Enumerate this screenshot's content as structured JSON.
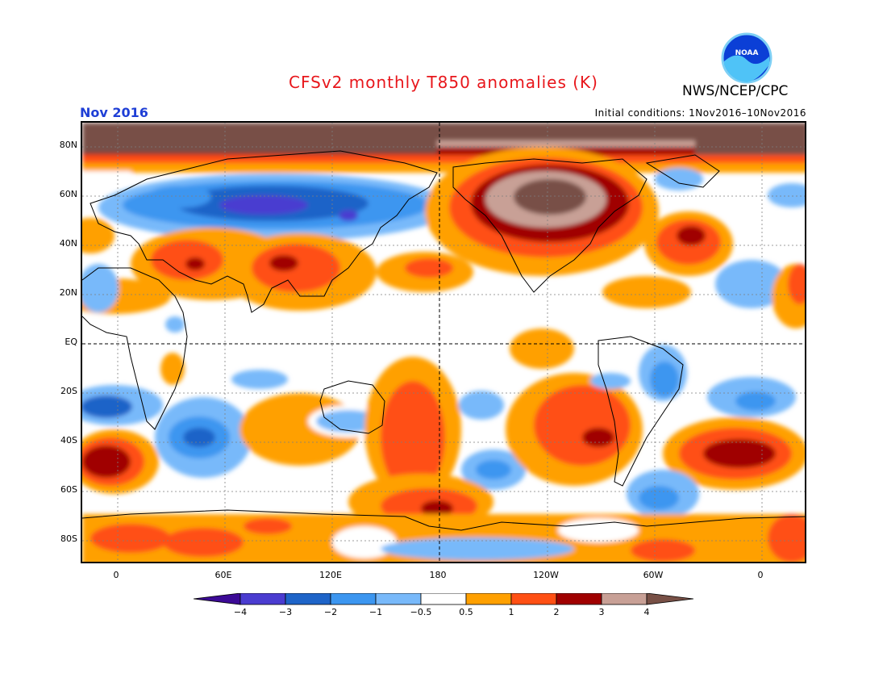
{
  "header": {
    "title": "CFSv2 monthly T850 anomalies (K)",
    "agency": "NWS/NCEP/CPC",
    "logo_text": "NOAA",
    "month": "Nov 2016",
    "initial_conditions": "Initial conditions: 1Nov2016–10Nov2016"
  },
  "axes": {
    "lat_labels": [
      "80N",
      "60N",
      "40N",
      "20N",
      "EQ",
      "20S",
      "40S",
      "60S",
      "80S"
    ],
    "lon_labels": [
      "0",
      "60E",
      "120E",
      "180",
      "120W",
      "60W",
      "0"
    ]
  },
  "colorbar": {
    "labels": [
      "−4",
      "−3",
      "−2",
      "−1",
      "−0.5",
      "0.5",
      "1",
      "2",
      "3",
      "4"
    ],
    "colors": {
      "below_-4": "#3c0a96",
      "-4_-3": "#4a3cd0",
      "-3_-2": "#1e64c8",
      "-2_-1": "#3c96f0",
      "-1_-0.5": "#78b9fa",
      "-0.5_0.5": "#ffffff",
      "0.5_1": "#ffa000",
      "1_2": "#ff5014",
      "2_3": "#a00000",
      "3_4": "#c8a096",
      "above_4": "#785046"
    }
  }
}
